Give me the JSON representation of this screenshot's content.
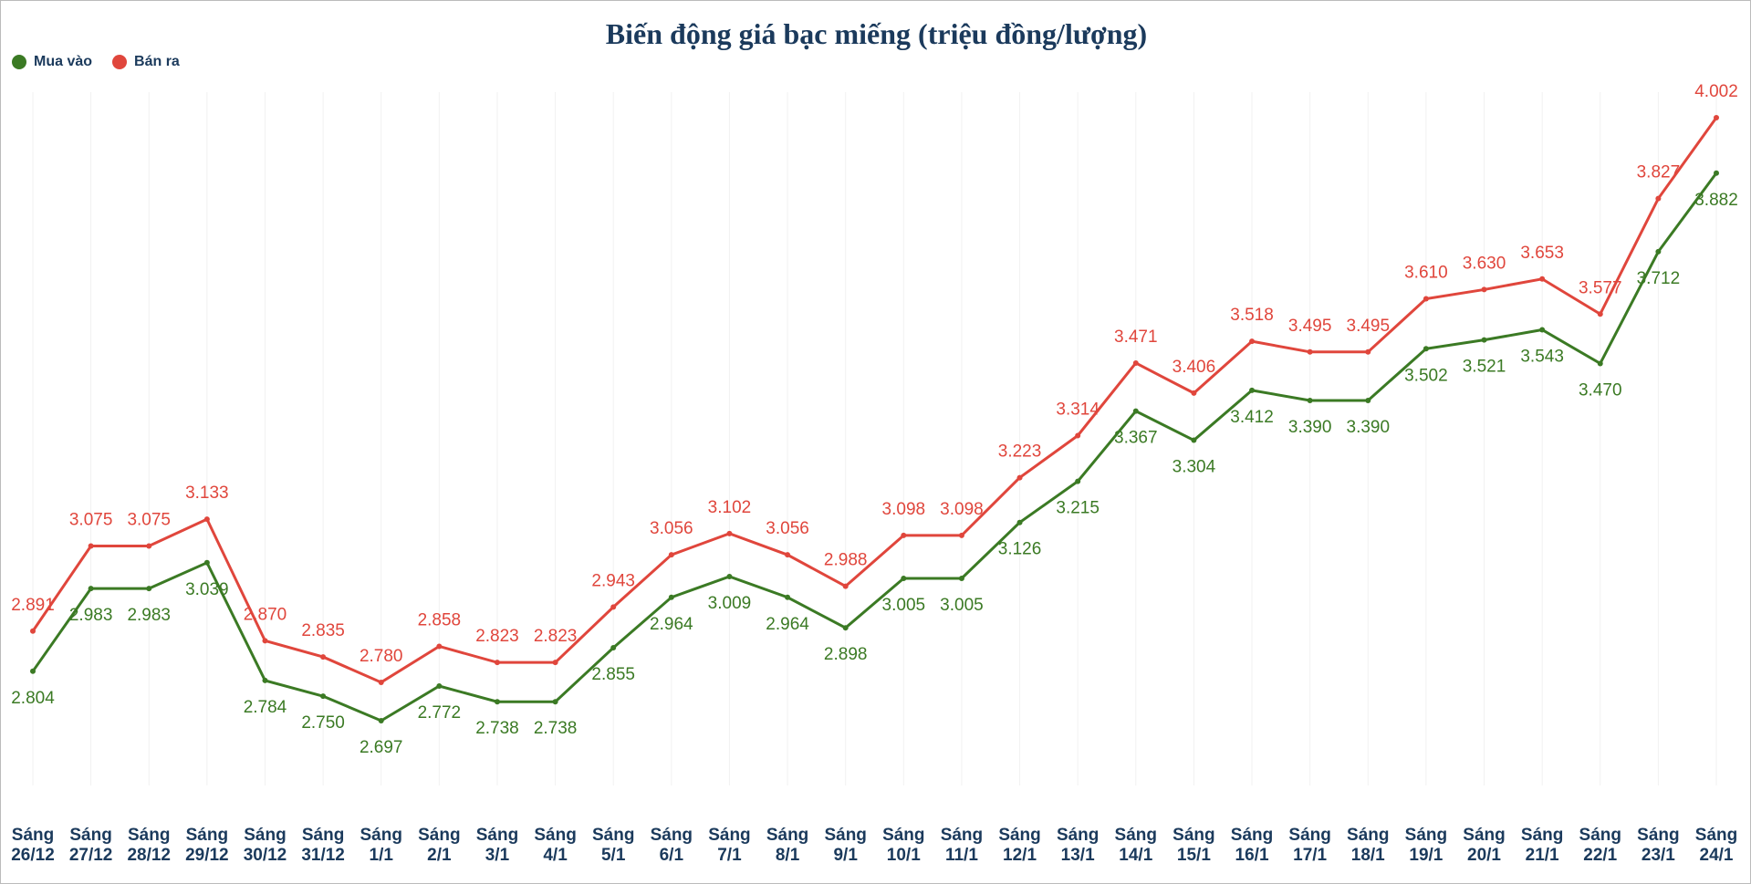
{
  "chart_data": {
    "type": "line",
    "title": "Biến động giá bạc miếng (triệu đồng/lượng)",
    "categories": [
      "Sáng 26/12",
      "Sáng 27/12",
      "Sáng 28/12",
      "Sáng 29/12",
      "Sáng 30/12",
      "Sáng 31/12",
      "Sáng 1/1",
      "Sáng 2/1",
      "Sáng 3/1",
      "Sáng 4/1",
      "Sáng 5/1",
      "Sáng 6/1",
      "Sáng 7/1",
      "Sáng 8/1",
      "Sáng 9/1",
      "Sáng 10/1",
      "Sáng 11/1",
      "Sáng 12/1",
      "Sáng 13/1",
      "Sáng 14/1",
      "Sáng 15/1",
      "Sáng 16/1",
      "Sáng 17/1",
      "Sáng 18/1",
      "Sáng 19/1",
      "Sáng 20/1",
      "Sáng 21/1",
      "Sáng 22/1",
      "Sáng 23/1",
      "Sáng 24/1"
    ],
    "series": [
      {
        "name": "Mua vào",
        "color": "#3b7a24",
        "values": [
          2.804,
          2.983,
          2.983,
          3.039,
          2.784,
          2.75,
          2.697,
          2.772,
          2.738,
          2.738,
          2.855,
          2.964,
          3.009,
          2.964,
          2.898,
          3.005,
          3.005,
          3.126,
          3.215,
          3.367,
          3.304,
          3.412,
          3.39,
          3.39,
          3.502,
          3.521,
          3.543,
          3.47,
          3.712,
          3.882
        ],
        "value_labels": [
          "2.804",
          "2.983",
          "2.983",
          "3.039",
          "2.784",
          "2.750",
          "2.697",
          "2.772",
          "2.738",
          "2.738",
          "2.855",
          "2.964",
          "3.009",
          "2.964",
          "2.898",
          "3.005",
          "3.005",
          "3.126",
          "3.215",
          "3.367",
          "3.304",
          "3.412",
          "3.390",
          "3.390",
          "3.502",
          "3.521",
          "3.543",
          "3.470",
          "3.712",
          "3.882"
        ]
      },
      {
        "name": "Bán ra",
        "color": "#e0463c",
        "values": [
          2.891,
          3.075,
          3.075,
          3.133,
          2.87,
          2.835,
          2.78,
          2.858,
          2.823,
          2.823,
          2.943,
          3.056,
          3.102,
          3.056,
          2.988,
          3.098,
          3.098,
          3.223,
          3.314,
          3.471,
          3.406,
          3.518,
          3.495,
          3.495,
          3.61,
          3.63,
          3.653,
          3.577,
          3.827,
          4.002
        ],
        "value_labels": [
          "2.891",
          "3.075",
          "3.075",
          "3.133",
          "2.870",
          "2.835",
          "2.780",
          "2.858",
          "2.823",
          "2.823",
          "2.943",
          "3.056",
          "3.102",
          "3.056",
          "2.988",
          "3.098",
          "3.098",
          "3.223",
          "3.314",
          "3.471",
          "3.406",
          "3.518",
          "3.495",
          "3.495",
          "3.610",
          "3.630",
          "3.653",
          "3.577",
          "3.827",
          "4.002"
        ]
      }
    ],
    "legend": "top-left"
  }
}
